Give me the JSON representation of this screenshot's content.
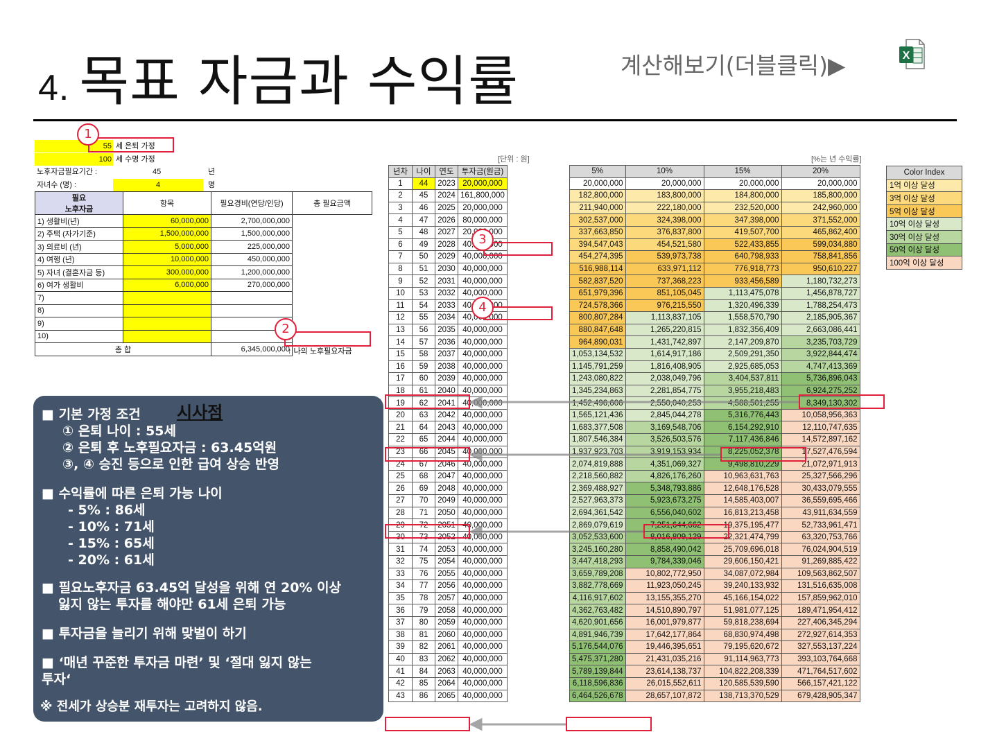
{
  "header": {
    "title_num": "4.",
    "title": "목표 자금과 수익률",
    "calc_link": "계산해보기(더블클릭)▶",
    "excel_icon": "excel-file-icon"
  },
  "inputs": {
    "retire_age": "55",
    "retire_label": "세 은퇴 가정",
    "life_age": "100",
    "life_label": "세 수명 가정",
    "period_label": "노후자금필요기간 :",
    "period_value": "45",
    "period_unit": "년",
    "children_label": "자녀수 (명) :",
    "children_value": "4",
    "children_unit": "명"
  },
  "need_table": {
    "col_item": "항목",
    "col_cost": "필요경비(연당/인당)",
    "col_total": "총 필요금액",
    "group_label_1": "필요",
    "group_label_2": "노후자금",
    "rows": [
      {
        "label": "1) 생활비(년)",
        "cost": "60,000,000",
        "total": "2,700,000,000"
      },
      {
        "label": "2) 주택 (자가기준)",
        "cost": "1,500,000,000",
        "total": "1,500,000,000"
      },
      {
        "label": "3) 의료비 (년)",
        "cost": "5,000,000",
        "total": "225,000,000"
      },
      {
        "label": "4) 여행 (년)",
        "cost": "10,000,000",
        "total": "450,000,000"
      },
      {
        "label": "5) 자녀 (결혼자금 등)",
        "cost": "300,000,000",
        "total": "1,200,000,000"
      },
      {
        "label": "6) 여가 생활비",
        "cost": "6,000,000",
        "total": "270,000,000"
      },
      {
        "label": "7)",
        "cost": "",
        "total": ""
      },
      {
        "label": "8)",
        "cost": "",
        "total": ""
      },
      {
        "label": "9)",
        "cost": "",
        "total": ""
      },
      {
        "label": "10)",
        "cost": "",
        "total": ""
      }
    ],
    "sum_label": "총 합",
    "sum_value": "6,345,000,000",
    "sum_note": "↑ 나의 노후필요자금"
  },
  "markers": [
    "1",
    "2",
    "3",
    "4"
  ],
  "panel": {
    "headline": "시사점",
    "lines": [
      "■ 기본 가정 조건",
      "① 은퇴 나이 : 55세",
      "② 은퇴 후 노후필요자금 : 63.45억원",
      "③, ④ 승진 등으로 인한 급여 상승 반영",
      "■ 수익률에 따른 은퇴 가능 나이",
      "- 5% : 86세",
      "- 10% : 71세",
      "- 15% : 65세",
      "- 20% : 61세",
      "■ 필요노후자금 63.45억 달성을 위해 연 20% 이상",
      "잃지 않는 투자를 해야만 61세 은퇴 가능",
      "■ 투자금을 늘리기 위해 맞벌이 하기",
      "■ ‘매년 꾸준한  투자금 마련’ 및 ‘절대 잃지 않는",
      "투자‘",
      "※ 전세가 상승분 재투자는 고려하지 않음."
    ]
  },
  "grid": {
    "unit_left": "[단위 : 원]",
    "unit_right": "[%는 년 수익률]",
    "headers": [
      "년차",
      "나이",
      "연도",
      "투자금(원금)",
      "5%",
      "10%",
      "15%",
      "20%"
    ],
    "rows": [
      [
        "1",
        "44",
        "2023",
        "20,000,000",
        "20,000,000",
        "20,000,000",
        "20,000,000",
        "20,000,000"
      ],
      [
        "2",
        "45",
        "2024",
        "161,800,000",
        "182,800,000",
        "183,800,000",
        "184,800,000",
        "185,800,000"
      ],
      [
        "3",
        "46",
        "2025",
        "20,000,000",
        "211,940,000",
        "222,180,000",
        "232,520,000",
        "242,960,000"
      ],
      [
        "4",
        "47",
        "2026",
        "80,000,000",
        "302,537,000",
        "324,398,000",
        "347,398,000",
        "371,552,000"
      ],
      [
        "5",
        "48",
        "2027",
        "20,000,000",
        "337,663,850",
        "376,837,800",
        "419,507,700",
        "465,862,400"
      ],
      [
        "6",
        "49",
        "2028",
        "40,000,000",
        "394,547,043",
        "454,521,580",
        "522,433,855",
        "599,034,880"
      ],
      [
        "7",
        "50",
        "2029",
        "40,000,000",
        "454,274,395",
        "539,973,738",
        "640,798,933",
        "758,841,856"
      ],
      [
        "8",
        "51",
        "2030",
        "40,000,000",
        "516,988,114",
        "633,971,112",
        "776,918,773",
        "950,610,227"
      ],
      [
        "9",
        "52",
        "2031",
        "40,000,000",
        "582,837,520",
        "737,368,223",
        "933,456,589",
        "1,180,732,273"
      ],
      [
        "10",
        "53",
        "2032",
        "40,000,000",
        "651,979,396",
        "851,105,045",
        "1,113,475,078",
        "1,456,878,727"
      ],
      [
        "11",
        "54",
        "2033",
        "40,000,000",
        "724,578,366",
        "976,215,550",
        "1,320,496,339",
        "1,788,254,473"
      ],
      [
        "12",
        "55",
        "2034",
        "40,000,000",
        "800,807,284",
        "1,113,837,105",
        "1,558,570,790",
        "2,185,905,367"
      ],
      [
        "13",
        "56",
        "2035",
        "40,000,000",
        "880,847,648",
        "1,265,220,815",
        "1,832,356,409",
        "2,663,086,441"
      ],
      [
        "14",
        "57",
        "2036",
        "40,000,000",
        "964,890,031",
        "1,431,742,897",
        "2,147,209,870",
        "3,235,703,729"
      ],
      [
        "15",
        "58",
        "2037",
        "40,000,000",
        "1,053,134,532",
        "1,614,917,186",
        "2,509,291,350",
        "3,922,844,474"
      ],
      [
        "16",
        "59",
        "2038",
        "40,000,000",
        "1,145,791,259",
        "1,816,408,905",
        "2,925,685,053",
        "4,747,413,369"
      ],
      [
        "17",
        "60",
        "2039",
        "40,000,000",
        "1,243,080,822",
        "2,038,049,796",
        "3,404,537,811",
        "5,736,896,043"
      ],
      [
        "18",
        "61",
        "2040",
        "40,000,000",
        "1,345,234,863",
        "2,281,854,775",
        "3,955,218,483",
        "6,924,275,252"
      ],
      [
        "19",
        "62",
        "2041",
        "40,000,000",
        "1,452,496,606",
        "2,550,040,253",
        "4,588,501,255",
        "8,349,130,302"
      ],
      [
        "20",
        "63",
        "2042",
        "40,000,000",
        "1,565,121,436",
        "2,845,044,278",
        "5,316,776,443",
        "10,058,956,363"
      ],
      [
        "21",
        "64",
        "2043",
        "40,000,000",
        "1,683,377,508",
        "3,169,548,706",
        "6,154,292,910",
        "12,110,747,635"
      ],
      [
        "22",
        "65",
        "2044",
        "40,000,000",
        "1,807,546,384",
        "3,526,503,576",
        "7,117,436,846",
        "14,572,897,162"
      ],
      [
        "23",
        "66",
        "2045",
        "40,000,000",
        "1,937,923,703",
        "3,919,153,934",
        "8,225,052,378",
        "17,527,476,594"
      ],
      [
        "24",
        "67",
        "2046",
        "40,000,000",
        "2,074,819,888",
        "4,351,069,327",
        "9,498,810,229",
        "21,072,971,913"
      ],
      [
        "25",
        "68",
        "2047",
        "40,000,000",
        "2,218,560,882",
        "4,826,176,260",
        "10,963,631,763",
        "25,327,566,296"
      ],
      [
        "26",
        "69",
        "2048",
        "40,000,000",
        "2,369,488,927",
        "5,348,793,886",
        "12,648,176,528",
        "30,433,079,555"
      ],
      [
        "27",
        "70",
        "2049",
        "40,000,000",
        "2,527,963,373",
        "5,923,673,275",
        "14,585,403,007",
        "36,559,695,466"
      ],
      [
        "28",
        "71",
        "2050",
        "40,000,000",
        "2,694,361,542",
        "6,556,040,602",
        "16,813,213,458",
        "43,911,634,559"
      ],
      [
        "29",
        "72",
        "2051",
        "40,000,000",
        "2,869,079,619",
        "7,251,644,662",
        "19,375,195,477",
        "52,733,961,471"
      ],
      [
        "30",
        "73",
        "2052",
        "40,000,000",
        "3,052,533,600",
        "8,016,809,129",
        "22,321,474,799",
        "63,320,753,766"
      ],
      [
        "31",
        "74",
        "2053",
        "40,000,000",
        "3,245,160,280",
        "8,858,490,042",
        "25,709,696,018",
        "76,024,904,519"
      ],
      [
        "32",
        "75",
        "2054",
        "40,000,000",
        "3,447,418,293",
        "9,784,339,046",
        "29,606,150,421",
        "91,269,885,422"
      ],
      [
        "33",
        "76",
        "2055",
        "40,000,000",
        "3,659,789,208",
        "10,802,772,950",
        "34,087,072,984",
        "109,563,862,507"
      ],
      [
        "34",
        "77",
        "2056",
        "40,000,000",
        "3,882,778,669",
        "11,923,050,245",
        "39,240,133,932",
        "131,516,635,008"
      ],
      [
        "35",
        "78",
        "2057",
        "40,000,000",
        "4,116,917,602",
        "13,155,355,270",
        "45,166,154,022",
        "157,859,962,010"
      ],
      [
        "36",
        "79",
        "2058",
        "40,000,000",
        "4,362,763,482",
        "14,510,890,797",
        "51,981,077,125",
        "189,471,954,412"
      ],
      [
        "37",
        "80",
        "2059",
        "40,000,000",
        "4,620,901,656",
        "16,001,979,877",
        "59,818,238,694",
        "227,406,345,294"
      ],
      [
        "38",
        "81",
        "2060",
        "40,000,000",
        "4,891,946,739",
        "17,642,177,864",
        "68,830,974,498",
        "272,927,614,353"
      ],
      [
        "39",
        "82",
        "2061",
        "40,000,000",
        "5,176,544,076",
        "19,446,395,651",
        "79,195,620,672",
        "327,553,137,224"
      ],
      [
        "40",
        "83",
        "2062",
        "40,000,000",
        "5,475,371,280",
        "21,431,035,216",
        "91,114,963,773",
        "393,103,764,668"
      ],
      [
        "41",
        "84",
        "2063",
        "40,000,000",
        "5,789,139,844",
        "23,614,138,737",
        "104,822,208,339",
        "471,764,517,602"
      ],
      [
        "42",
        "85",
        "2064",
        "40,000,000",
        "6,118,596,836",
        "26,015,552,611",
        "120,585,539,590",
        "566,157,421,122"
      ],
      [
        "43",
        "86",
        "2065",
        "40,000,000",
        "6,464,526,678",
        "28,657,107,872",
        "138,713,370,529",
        "679,428,905,347"
      ]
    ]
  },
  "color_index": {
    "header": "Color Index",
    "items": [
      {
        "label": "1억 이상 달성",
        "color": "#fde9a9"
      },
      {
        "label": "3억 이상 달성",
        "color": "#fcd97a"
      },
      {
        "label": "5억 이상 달성",
        "color": "#f9c857"
      },
      {
        "label": "10억 이상 달성",
        "color": "#d8e8c8"
      },
      {
        "label": "30억 이상 달성",
        "color": "#b8d7a0"
      },
      {
        "label": "50억 이상 달성",
        "color": "#8fc073"
      },
      {
        "label": "100억 이상 달성",
        "color": "#fad7c0"
      }
    ]
  }
}
